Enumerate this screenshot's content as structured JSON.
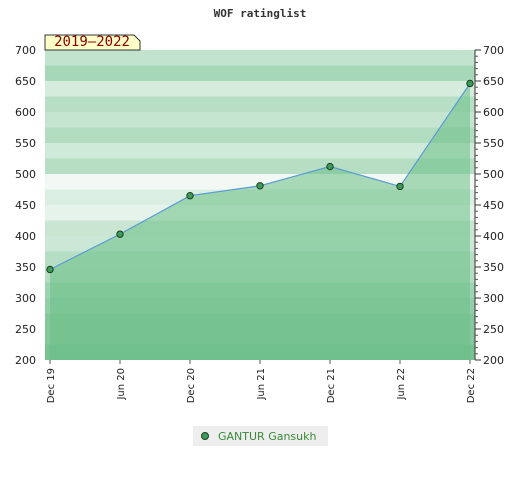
{
  "chart_data": {
    "type": "area",
    "title": "WOF ratinglist",
    "period_badge": "2019–2022",
    "categories": [
      "Dec 19",
      "Jun 20",
      "Dec 20",
      "Jun 21",
      "Dec 21",
      "Jun 22",
      "Dec 22"
    ],
    "series": [
      {
        "name": "GANTUR Gansukh",
        "values": [
          346,
          403,
          465,
          481,
          512,
          480,
          646
        ]
      }
    ],
    "ylim": [
      200,
      700
    ],
    "yticks": [
      200,
      250,
      300,
      350,
      400,
      450,
      500,
      550,
      600,
      650,
      700
    ],
    "right_axis": true,
    "grid": true,
    "legend_position": "bottom-center",
    "colors": {
      "line": "#5b9bd5",
      "fill": "#6abf85",
      "marker": "#3c9a5a",
      "badge_bg": "#ffffc8"
    }
  }
}
